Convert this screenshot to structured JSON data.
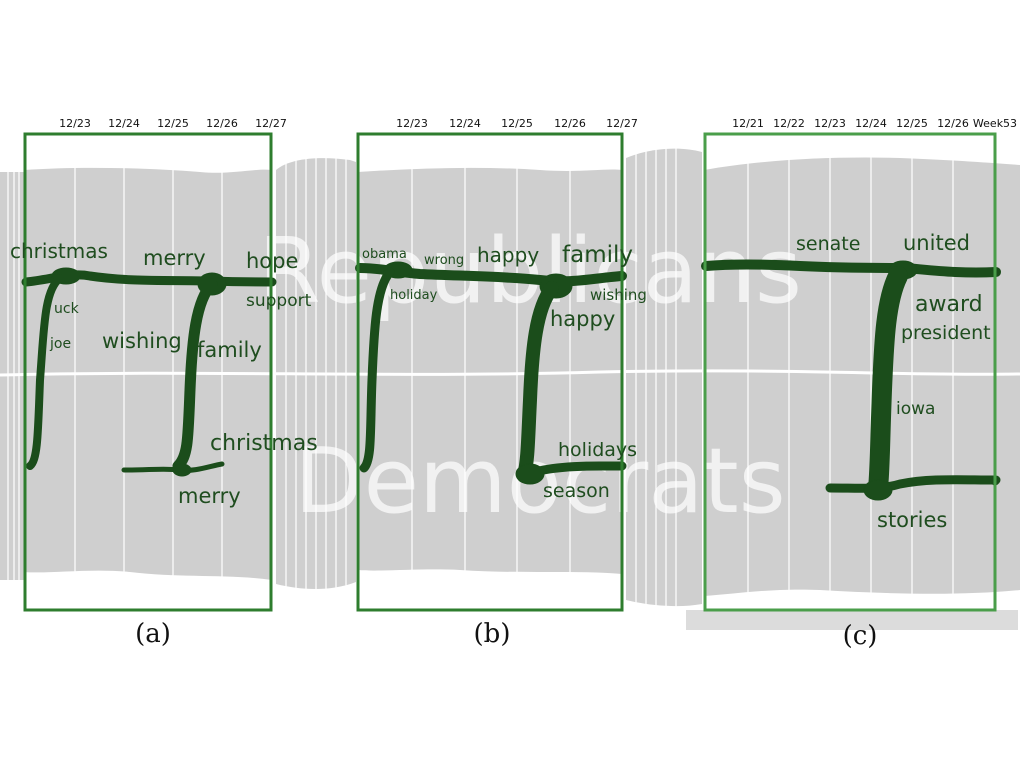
{
  "watermark": {
    "top": "Republicans",
    "bottom": "Democrats"
  },
  "colors": {
    "flow": "#1b4d1b",
    "frame": "#3f8f3f",
    "band": "#cfcfcf",
    "grid": "#ffffff",
    "text": "#1f4d1f"
  },
  "panels": [
    {
      "caption": "(a)",
      "dates": [
        "12/23",
        "12/24",
        "12/25",
        "12/26",
        "12/27"
      ],
      "keywords": [
        "christmas",
        "merry",
        "hope",
        "support",
        "uck",
        "joe",
        "wishing",
        "family",
        "christmas",
        "merry"
      ]
    },
    {
      "caption": "(b)",
      "dates": [
        "12/23",
        "12/24",
        "12/25",
        "12/26",
        "12/27"
      ],
      "keywords": [
        "obama",
        "wrong",
        "happy",
        "family",
        "holiday",
        "wishing",
        "happy",
        "holidays",
        "season"
      ]
    },
    {
      "caption": "(c)",
      "dates": [
        "12/21",
        "12/22",
        "12/23",
        "12/24",
        "12/25",
        "12/26",
        "Week53"
      ],
      "keywords": [
        "senate",
        "united",
        "award",
        "president",
        "iowa",
        "stories"
      ]
    }
  ]
}
